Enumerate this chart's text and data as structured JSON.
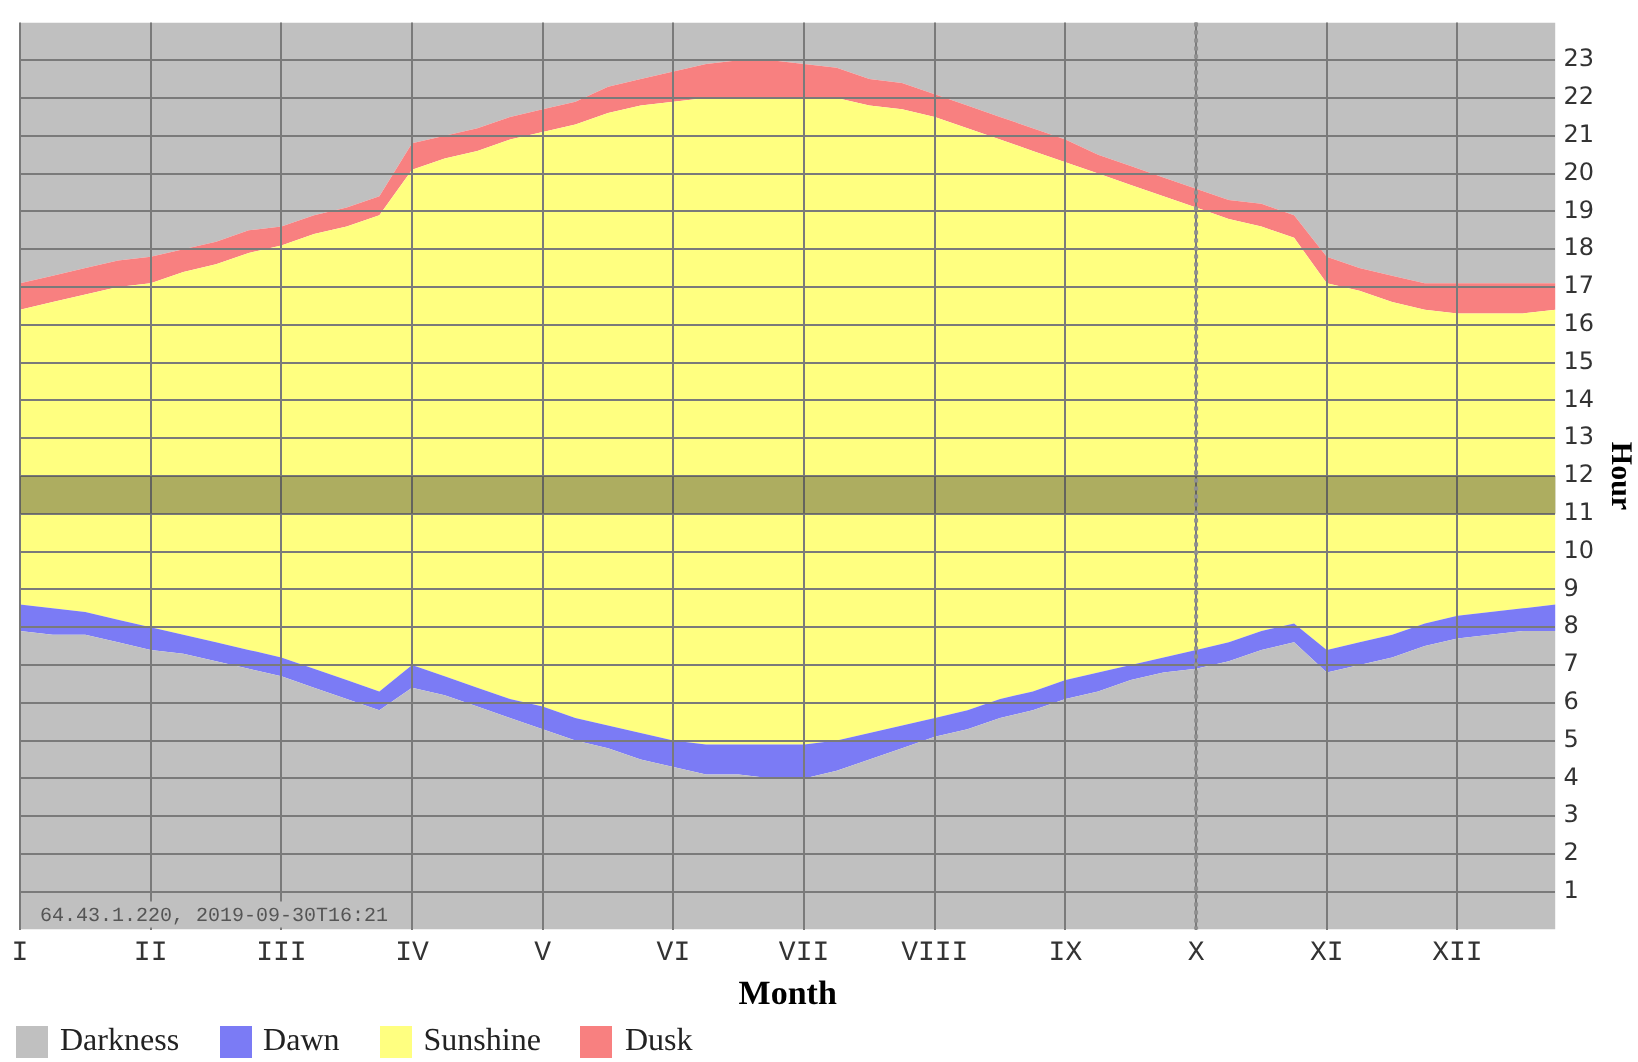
{
  "chart_data": {
    "type": "area",
    "stacked": true,
    "xlabel": "Month",
    "ylabel": "Hour",
    "categories": [
      "I",
      null,
      null,
      null,
      "II",
      null,
      null,
      null,
      "III",
      null,
      null,
      null,
      "IV",
      null,
      null,
      null,
      "V",
      null,
      null,
      null,
      "VI",
      null,
      null,
      null,
      "VII",
      null,
      null,
      null,
      "VIII",
      null,
      null,
      null,
      "IX",
      null,
      null,
      null,
      "X",
      null,
      null,
      null,
      "XI",
      null,
      null,
      null,
      "XII",
      null,
      null,
      null
    ],
    "ylim": [
      0,
      24
    ],
    "yticks": [
      1,
      2,
      3,
      4,
      5,
      6,
      7,
      8,
      9,
      10,
      11,
      12,
      13,
      14,
      15,
      16,
      17,
      18,
      19,
      20,
      21,
      22,
      23
    ],
    "grid": true,
    "legend": "bottom left",
    "series": [
      {
        "name": "Darkness",
        "color": "#c0c0c0",
        "values": [
          7.9,
          7.8,
          7.8,
          7.6,
          7.4,
          7.3,
          7.1,
          6.9,
          6.7,
          6.4,
          6.1,
          5.8,
          6.4,
          6.2,
          5.9,
          5.6,
          5.3,
          5.0,
          4.8,
          4.5,
          4.3,
          4.1,
          4.1,
          4.0,
          4.0,
          4.2,
          4.5,
          4.8,
          5.1,
          5.3,
          5.6,
          5.8,
          6.1,
          6.3,
          6.6,
          6.8,
          6.9,
          7.1,
          7.4,
          7.6,
          6.8,
          7.0,
          7.2,
          7.5,
          7.7,
          7.8,
          7.9,
          7.9
        ]
      },
      {
        "name": "Dawn",
        "color": "#7b7bf5",
        "values": [
          0.7,
          0.7,
          0.6,
          0.6,
          0.6,
          0.5,
          0.5,
          0.5,
          0.5,
          0.5,
          0.5,
          0.5,
          0.6,
          0.5,
          0.5,
          0.5,
          0.6,
          0.6,
          0.6,
          0.7,
          0.7,
          0.8,
          0.8,
          0.9,
          0.9,
          0.8,
          0.7,
          0.6,
          0.5,
          0.5,
          0.5,
          0.5,
          0.5,
          0.5,
          0.4,
          0.4,
          0.5,
          0.5,
          0.5,
          0.5,
          0.6,
          0.6,
          0.6,
          0.6,
          0.6,
          0.6,
          0.6,
          0.7
        ]
      },
      {
        "name": "Sunshine",
        "color": "#ffff80",
        "values": [
          7.8,
          8.1,
          8.4,
          8.8,
          9.1,
          9.6,
          10.0,
          10.5,
          10.9,
          11.5,
          12.0,
          12.6,
          13.1,
          13.7,
          14.2,
          14.8,
          15.2,
          15.7,
          16.2,
          16.6,
          16.9,
          17.1,
          17.1,
          17.1,
          17.1,
          17.0,
          16.6,
          16.3,
          15.9,
          15.4,
          14.8,
          14.3,
          13.7,
          13.2,
          12.7,
          12.2,
          11.7,
          11.2,
          10.7,
          10.2,
          9.7,
          9.3,
          8.8,
          8.3,
          8.0,
          7.9,
          7.8,
          7.8
        ]
      },
      {
        "name": "Dusk",
        "color": "#f88080",
        "values": [
          0.7,
          0.7,
          0.7,
          0.7,
          0.7,
          0.6,
          0.6,
          0.6,
          0.5,
          0.5,
          0.5,
          0.5,
          0.7,
          0.6,
          0.6,
          0.6,
          0.6,
          0.6,
          0.7,
          0.7,
          0.8,
          0.9,
          1.0,
          1.0,
          0.9,
          0.8,
          0.7,
          0.7,
          0.6,
          0.6,
          0.6,
          0.6,
          0.6,
          0.5,
          0.5,
          0.5,
          0.5,
          0.5,
          0.6,
          0.6,
          0.7,
          0.6,
          0.7,
          0.7,
          0.8,
          0.8,
          0.8,
          0.7
        ]
      },
      {
        "color": "#c0c0c0",
        "values": [
          6.9,
          6.7,
          6.5,
          6.3,
          6.2,
          6.0,
          5.8,
          5.5,
          5.4,
          5.1,
          4.9,
          4.6,
          3.2,
          3.0,
          2.8,
          2.5,
          2.3,
          2.1,
          1.7,
          1.5,
          1.3,
          1.1,
          1.0,
          1.0,
          1.1,
          1.2,
          1.5,
          1.6,
          1.9,
          2.2,
          2.5,
          2.8,
          3.1,
          3.5,
          3.8,
          4.1,
          4.4,
          4.7,
          4.8,
          5.1,
          6.2,
          6.5,
          6.7,
          6.9,
          6.9,
          6.9,
          6.9,
          6.9
        ]
      }
    ],
    "bands": [
      {
        "axis": "y",
        "from": 11,
        "to": 12,
        "color": "#4a4a3a"
      }
    ],
    "ref_lines": [
      {
        "axis": "x",
        "value": "X",
        "line_style": "dotted",
        "color": "#909090"
      }
    ],
    "annotations": [
      "64.43.1.220, 2019-09-30T16:21"
    ]
  }
}
